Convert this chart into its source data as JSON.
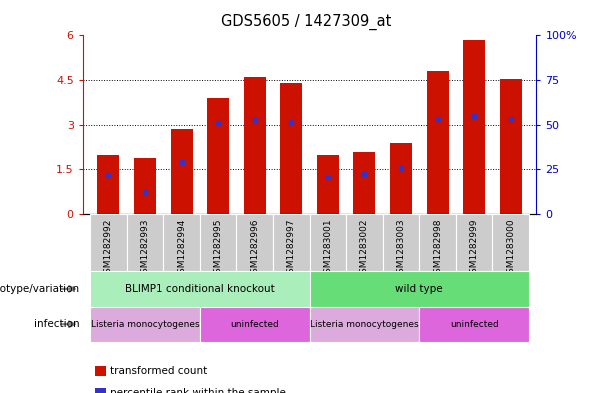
{
  "title": "GDS5605 / 1427309_at",
  "samples": [
    "GSM1282992",
    "GSM1282993",
    "GSM1282994",
    "GSM1282995",
    "GSM1282996",
    "GSM1282997",
    "GSM1283001",
    "GSM1283002",
    "GSM1283003",
    "GSM1282998",
    "GSM1282999",
    "GSM1283000"
  ],
  "red_values": [
    2.0,
    1.9,
    2.85,
    3.9,
    4.6,
    4.4,
    2.0,
    2.1,
    2.4,
    4.8,
    5.85,
    4.55
  ],
  "blue_values": [
    1.3,
    0.75,
    1.75,
    3.05,
    3.15,
    3.1,
    1.25,
    1.35,
    1.55,
    3.2,
    3.3,
    3.2
  ],
  "ylim_left": [
    0,
    6
  ],
  "ylim_right": [
    0,
    100
  ],
  "yticks_left": [
    0,
    1.5,
    3.0,
    4.5,
    6.0
  ],
  "yticks_right": [
    0,
    25,
    50,
    75,
    100
  ],
  "ytick_labels_left": [
    "0",
    "1.5",
    "3",
    "4.5",
    "6"
  ],
  "ytick_labels_right": [
    "0",
    "25",
    "50",
    "75",
    "100%"
  ],
  "bar_color": "#cc1100",
  "blue_color": "#3333cc",
  "genotype_groups": [
    {
      "label": "BLIMP1 conditional knockout",
      "start": 0,
      "end": 6,
      "color": "#aaeebb"
    },
    {
      "label": "wild type",
      "start": 6,
      "end": 12,
      "color": "#66dd77"
    }
  ],
  "infection_groups": [
    {
      "label": "Listeria monocytogenes",
      "start": 0,
      "end": 3,
      "color": "#ddaadd"
    },
    {
      "label": "uninfected",
      "start": 3,
      "end": 6,
      "color": "#dd66dd"
    },
    {
      "label": "Listeria monocytogenes",
      "start": 6,
      "end": 9,
      "color": "#ddaadd"
    },
    {
      "label": "uninfected",
      "start": 9,
      "end": 12,
      "color": "#dd66dd"
    }
  ],
  "legend_items": [
    {
      "label": "transformed count",
      "color": "#cc1100"
    },
    {
      "label": "percentile rank within the sample",
      "color": "#3333cc"
    }
  ],
  "left_axis_color": "#cc1100",
  "right_axis_color": "#0000cc",
  "row_label_genotype": "genotype/variation",
  "row_label_infection": "infection",
  "xlabel_bg": "#cccccc",
  "bar_width": 0.6
}
